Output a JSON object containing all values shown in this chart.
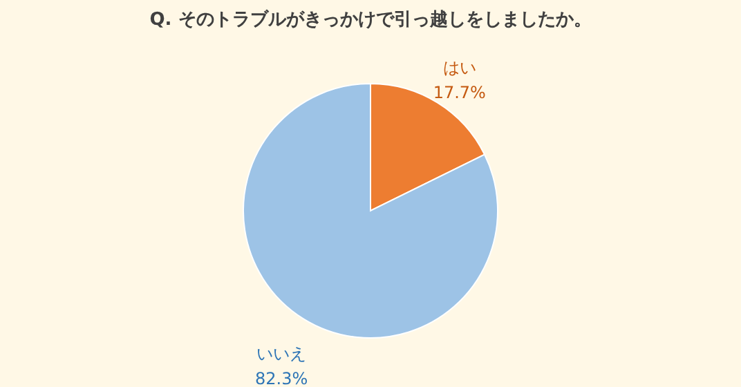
{
  "chart_data": {
    "type": "pie",
    "title": "Q. そのトラブルがきっかけで引っ越しをしましたか。",
    "categories": [
      "はい",
      "いいえ"
    ],
    "values": [
      17.7,
      82.3
    ],
    "colors": [
      "#ed7d31",
      "#9dc3e6"
    ],
    "value_labels": [
      "17.7%",
      "82.3%"
    ],
    "legend": false
  }
}
